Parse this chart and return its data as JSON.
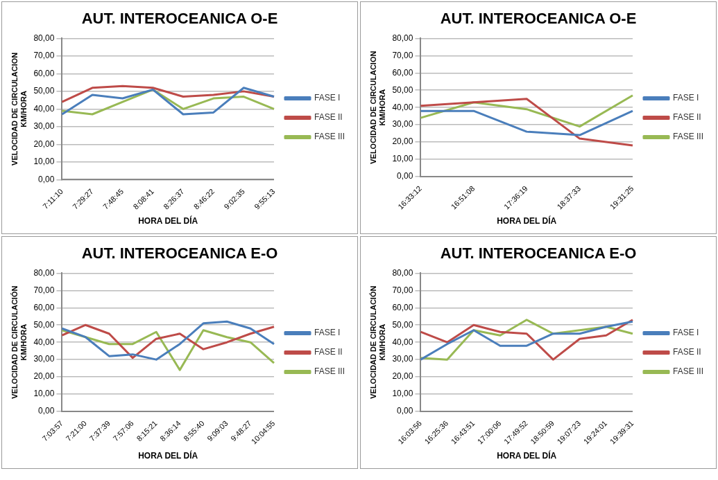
{
  "chart_data": [
    {
      "type": "line",
      "title": "AUT. INTEROCEANICA O-E",
      "xlabel": "HORA DEL DÍA",
      "ylabel": "VELOCIDAD DE CIRCULACION\nKM/HORA",
      "categories": [
        "7:11:10",
        "7:29:27",
        "7:48:45",
        "8:08:41",
        "8:26:37",
        "8:46:22",
        "9:02:35",
        "9:55:13"
      ],
      "ylim": [
        0,
        80
      ],
      "yticks": [
        {
          "value": 0,
          "label": "0,00"
        },
        {
          "value": 10,
          "label": "10,00"
        },
        {
          "value": 20,
          "label": "20,00"
        },
        {
          "value": 30,
          "label": "30,00"
        },
        {
          "value": 40,
          "label": "40,00"
        },
        {
          "value": 50,
          "label": "50,00"
        },
        {
          "value": 60,
          "label": "60,00"
        },
        {
          "value": 70,
          "label": "70,00"
        },
        {
          "value": 80,
          "label": "80,00"
        }
      ],
      "grid": "y",
      "legend": "right",
      "marker": "none",
      "series": [
        {
          "name": "FASE I",
          "color": "#4a7ebb",
          "values": [
            37,
            48,
            46,
            51,
            37,
            38,
            52,
            47
          ]
        },
        {
          "name": "FASE II",
          "color": "#be4b48",
          "values": [
            44,
            52,
            53,
            52,
            47,
            48,
            50,
            47
          ]
        },
        {
          "name": "FASE III",
          "color": "#98b954",
          "values": [
            39,
            37,
            44,
            51,
            40,
            46,
            47,
            40
          ]
        }
      ]
    },
    {
      "type": "line",
      "title": "AUT. INTEROCEANICA O-E",
      "xlabel": "HORA DEL DÍA",
      "ylabel": "VELOCIDAD DE CIRCULACION\nKM/HORA",
      "categories": [
        "16:33:12",
        "16:51:08",
        "17:36:19",
        "18:37:33",
        "19:31:25"
      ],
      "ylim": [
        0,
        80
      ],
      "yticks": [
        {
          "value": 0,
          "label": "0,00"
        },
        {
          "value": 10,
          "label": "10,00"
        },
        {
          "value": 20,
          "label": "20,00"
        },
        {
          "value": 30,
          "label": "30,00"
        },
        {
          "value": 40,
          "label": "40,00"
        },
        {
          "value": 50,
          "label": "50,00"
        },
        {
          "value": 60,
          "label": "60,00"
        },
        {
          "value": 70,
          "label": "70,00"
        },
        {
          "value": 80,
          "label": "80,00"
        }
      ],
      "grid": "y",
      "legend": "right",
      "marker": "none",
      "series": [
        {
          "name": "FASE I",
          "color": "#4a7ebb",
          "values": [
            38,
            38,
            26,
            24,
            38
          ]
        },
        {
          "name": "FASE II",
          "color": "#be4b48",
          "values": [
            41,
            43,
            45,
            22,
            18
          ]
        },
        {
          "name": "FASE III",
          "color": "#98b954",
          "values": [
            34,
            43,
            39,
            29,
            47
          ]
        }
      ]
    },
    {
      "type": "line",
      "title": "AUT. INTEROCEANICA E-O",
      "xlabel": "HORA DEL DÍA",
      "ylabel": "VELOCIDAD DE CIRCULACIÓN\nKM/HORA",
      "categories": [
        "7:03:57",
        "7:21:00",
        "7:37:39",
        "7:57:06",
        "8:15:21",
        "8:36:14",
        "8:55:40",
        "9:09:03",
        "9:48:27",
        "10:04:55"
      ],
      "ylim": [
        0,
        80
      ],
      "yticks": [
        {
          "value": 0,
          "label": "0,00"
        },
        {
          "value": 10,
          "label": "10,00"
        },
        {
          "value": 20,
          "label": "20,00"
        },
        {
          "value": 30,
          "label": "30,00"
        },
        {
          "value": 40,
          "label": "40,00"
        },
        {
          "value": 50,
          "label": "50,00"
        },
        {
          "value": 60,
          "label": "60,00"
        },
        {
          "value": 70,
          "label": "70,00"
        },
        {
          "value": 80,
          "label": "80,00"
        }
      ],
      "grid": "y",
      "legend": "right",
      "marker": "none",
      "series": [
        {
          "name": "FASE I",
          "color": "#4a7ebb",
          "values": [
            48,
            43,
            32,
            33,
            30,
            39,
            51,
            52,
            48,
            39
          ]
        },
        {
          "name": "FASE II",
          "color": "#be4b48",
          "values": [
            44,
            50,
            45,
            31,
            42,
            45,
            36,
            40,
            45,
            49
          ]
        },
        {
          "name": "FASE III",
          "color": "#98b954",
          "values": [
            47,
            43,
            39,
            39,
            46,
            24,
            47,
            43,
            40,
            28
          ]
        }
      ]
    },
    {
      "type": "line",
      "title": "AUT. INTEROCEANICA E-O",
      "xlabel": "HORA DEL DÍA",
      "ylabel": "VELOCIDAD DE CIRCULACIÓN\nKM/HORA",
      "categories": [
        "16:03:56",
        "16:25:36",
        "16:43:51",
        "17:00:06",
        "17:49:52",
        "18:50:59",
        "19:07:23",
        "19:24:01",
        "19:39:31"
      ],
      "ylim": [
        0,
        80
      ],
      "yticks": [
        {
          "value": 0,
          "label": "0,00"
        },
        {
          "value": 10,
          "label": "10,00"
        },
        {
          "value": 20,
          "label": "20,00"
        },
        {
          "value": 30,
          "label": "30,00"
        },
        {
          "value": 40,
          "label": "40,00"
        },
        {
          "value": 50,
          "label": "50,00"
        },
        {
          "value": 60,
          "label": "60,00"
        },
        {
          "value": 70,
          "label": "70,00"
        },
        {
          "value": 80,
          "label": "80,00"
        }
      ],
      "grid": "y",
      "legend": "right",
      "marker": "none",
      "series": [
        {
          "name": "FASE I",
          "color": "#4a7ebb",
          "values": [
            30,
            39,
            47,
            38,
            38,
            45,
            45,
            49,
            52
          ]
        },
        {
          "name": "FASE II",
          "color": "#be4b48",
          "values": [
            46,
            40,
            50,
            46,
            45,
            30,
            42,
            44,
            53
          ]
        },
        {
          "name": "FASE III",
          "color": "#98b954",
          "values": [
            31,
            30,
            47,
            44,
            53,
            45,
            47,
            49,
            45
          ]
        }
      ]
    }
  ]
}
